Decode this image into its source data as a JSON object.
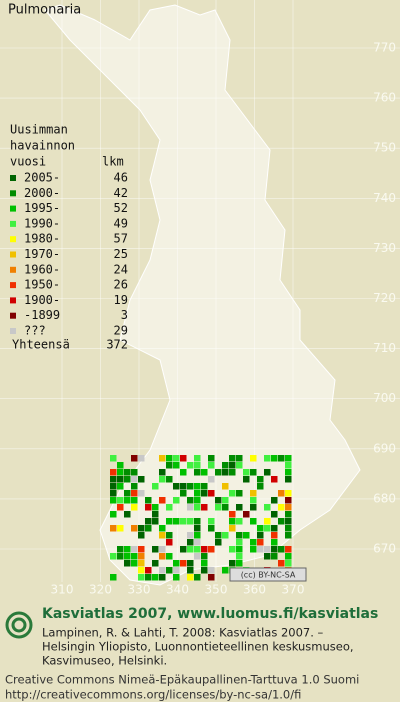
{
  "title": "Pulmonaria",
  "legend": {
    "heading": [
      "Uusimman",
      "havainnon",
      "vuosi"
    ],
    "count_heading": "lkm",
    "items": [
      {
        "label": "2005-",
        "count": 46,
        "color": "#006400"
      },
      {
        "label": "2000-",
        "count": 42,
        "color": "#008c00"
      },
      {
        "label": "1995-",
        "count": 52,
        "color": "#00c000"
      },
      {
        "label": "1990-",
        "count": 49,
        "color": "#40f040"
      },
      {
        "label": "1980-",
        "count": 57,
        "color": "#ffff00"
      },
      {
        "label": "1970-",
        "count": 25,
        "color": "#f0c000"
      },
      {
        "label": "1960-",
        "count": 24,
        "color": "#f08000"
      },
      {
        "label": "1950-",
        "count": 26,
        "color": "#f03000"
      },
      {
        "label": "1900-",
        "count": 19,
        "color": "#d00000"
      },
      {
        "label": "-1899",
        "count": 3,
        "color": "#800000"
      },
      {
        "label": "???",
        "count": 29,
        "color": "#c8c8c8"
      }
    ],
    "total": {
      "label": "Yhteensä",
      "count": 372
    }
  },
  "grid": {
    "x_ticks": [
      310,
      320,
      330,
      340,
      350,
      360,
      370
    ],
    "y_ticks": [
      770,
      760,
      750,
      740,
      730,
      720,
      710,
      700,
      690,
      680,
      670
    ]
  },
  "badge": "(cc) BY-NC-SA",
  "footer": {
    "heading": "Kasviatlas 2007, www.luomus.fi/kasviatlas",
    "citation": [
      "Lampinen, R. & Lahti, T. 2008: Kasviatlas 2007. –",
      "Helsingin Yliopisto, Luonnontieteellinen keskusmuseo,",
      "Kasvimuseo, Helsinki."
    ],
    "license": [
      "Creative Commons Nimeä-Epäkaupallinen-Tarttuva 1.0 Suomi",
      "http://creativecommons.org/licenses/by-nc-sa/1.0/fi"
    ]
  }
}
